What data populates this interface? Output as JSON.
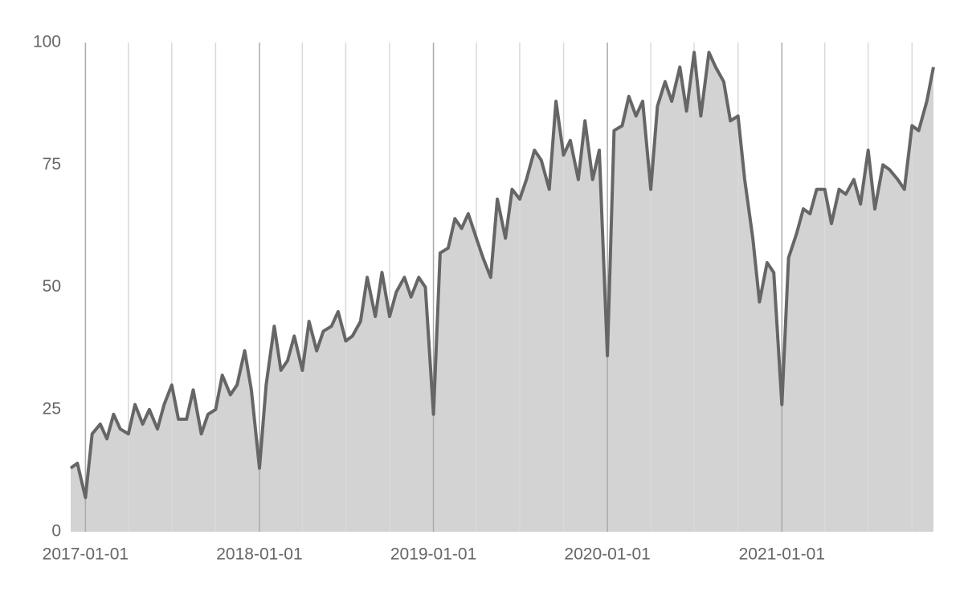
{
  "chart_data": {
    "type": "area",
    "x": [
      "2016-12-01",
      "2016-12-15",
      "2017-01-01",
      "2017-01-15",
      "2017-02-01",
      "2017-02-15",
      "2017-03-01",
      "2017-03-15",
      "2017-04-01",
      "2017-04-15",
      "2017-05-01",
      "2017-05-15",
      "2017-06-01",
      "2017-06-15",
      "2017-07-01",
      "2017-07-15",
      "2017-08-01",
      "2017-08-15",
      "2017-09-01",
      "2017-09-15",
      "2017-10-01",
      "2017-10-15",
      "2017-11-01",
      "2017-11-15",
      "2017-12-01",
      "2017-12-15",
      "2018-01-01",
      "2018-01-15",
      "2018-02-01",
      "2018-02-15",
      "2018-03-01",
      "2018-03-15",
      "2018-04-01",
      "2018-04-15",
      "2018-05-01",
      "2018-05-15",
      "2018-06-01",
      "2018-06-15",
      "2018-07-01",
      "2018-07-15",
      "2018-08-01",
      "2018-08-15",
      "2018-09-01",
      "2018-09-15",
      "2018-10-01",
      "2018-10-15",
      "2018-11-01",
      "2018-11-15",
      "2018-12-01",
      "2018-12-15",
      "2019-01-01",
      "2019-01-15",
      "2019-02-01",
      "2019-02-15",
      "2019-03-01",
      "2019-03-15",
      "2019-04-01",
      "2019-04-15",
      "2019-05-01",
      "2019-05-15",
      "2019-06-01",
      "2019-06-15",
      "2019-07-01",
      "2019-07-15",
      "2019-08-01",
      "2019-08-15",
      "2019-09-01",
      "2019-09-15",
      "2019-10-01",
      "2019-10-15",
      "2019-11-01",
      "2019-11-15",
      "2019-12-01",
      "2019-12-15",
      "2020-01-01",
      "2020-01-15",
      "2020-02-01",
      "2020-02-15",
      "2020-03-01",
      "2020-03-15",
      "2020-04-01",
      "2020-04-15",
      "2020-05-01",
      "2020-05-15",
      "2020-06-01",
      "2020-06-15",
      "2020-07-01",
      "2020-07-15",
      "2020-08-01",
      "2020-08-15",
      "2020-09-01",
      "2020-09-15",
      "2020-10-01",
      "2020-10-15",
      "2020-11-01",
      "2020-11-15",
      "2020-12-01",
      "2020-12-15",
      "2021-01-01",
      "2021-01-15",
      "2021-02-01",
      "2021-02-15",
      "2021-03-01",
      "2021-03-15",
      "2021-04-01",
      "2021-04-15",
      "2021-05-01",
      "2021-05-15",
      "2021-06-01",
      "2021-06-15",
      "2021-07-01",
      "2021-07-15",
      "2021-08-01",
      "2021-08-15",
      "2021-09-01",
      "2021-09-15",
      "2021-10-01",
      "2021-10-15",
      "2021-11-01",
      "2021-11-15"
    ],
    "series": [
      {
        "color": "#666666",
        "fill": "#d3d3d3",
        "values": [
          13,
          14,
          7,
          20,
          22,
          19,
          24,
          21,
          20,
          26,
          22,
          25,
          21,
          26,
          30,
          23,
          23,
          29,
          20,
          24,
          25,
          32,
          28,
          30,
          37,
          29,
          13,
          30,
          42,
          33,
          35,
          40,
          33,
          43,
          37,
          41,
          42,
          45,
          39,
          40,
          43,
          52,
          44,
          53,
          44,
          49,
          52,
          48,
          52,
          50,
          24,
          57,
          58,
          64,
          62,
          65,
          60,
          56,
          52,
          68,
          60,
          70,
          68,
          72,
          78,
          76,
          70,
          88,
          77,
          80,
          72,
          84,
          72,
          78,
          36,
          82,
          83,
          89,
          85,
          88,
          70,
          87,
          92,
          88,
          95,
          86,
          98,
          85,
          98,
          95,
          92,
          84,
          85,
          72,
          60,
          47,
          55,
          53,
          26,
          56,
          61,
          66,
          65,
          70,
          70,
          63,
          70,
          69,
          72,
          67,
          78,
          66,
          75,
          74,
          72,
          70,
          83,
          82,
          88,
          95
        ]
      }
    ],
    "xlim": [
      "2016-12-01",
      "2021-11-15"
    ],
    "xticks": [
      {
        "value": "2017-01-01",
        "label": "2017-01-01"
      },
      {
        "value": "2018-01-01",
        "label": "2018-01-01"
      },
      {
        "value": "2019-01-01",
        "label": "2019-01-01"
      },
      {
        "value": "2020-01-01",
        "label": "2020-01-01"
      },
      {
        "value": "2021-01-01",
        "label": "2021-01-01"
      }
    ],
    "xgrid": [
      "2017-01-01",
      "2017-04-01",
      "2017-07-01",
      "2017-10-01",
      "2018-01-01",
      "2018-04-01",
      "2018-07-01",
      "2018-10-01",
      "2019-01-01",
      "2019-04-01",
      "2019-07-01",
      "2019-10-01",
      "2020-01-01",
      "2020-04-01",
      "2020-07-01",
      "2020-10-01",
      "2021-01-01",
      "2021-04-01",
      "2021-07-01",
      "2021-10-01"
    ],
    "ylim": [
      0,
      100
    ],
    "yticks": [
      0,
      25,
      50,
      75,
      100
    ]
  }
}
